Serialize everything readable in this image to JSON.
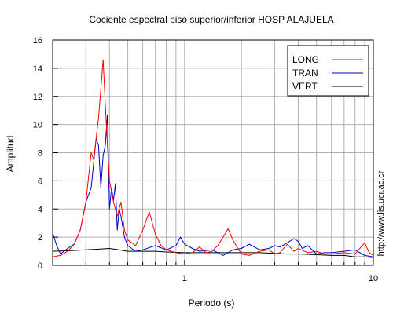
{
  "chart_data": {
    "type": "line",
    "title": "Cociente espectral piso superior/inferior  HOSP ALAJUELA",
    "xlabel": "Periodo (s)",
    "ylabel": "Amplitud",
    "x_scale": "log",
    "xlim": [
      0.2,
      10
    ],
    "ylim": [
      0,
      16
    ],
    "x_tick_labels": [
      {
        "value": 1,
        "label": "1"
      },
      {
        "value": 10,
        "label": "10"
      }
    ],
    "y_ticks": [
      0,
      2,
      4,
      6,
      8,
      10,
      12,
      14,
      16
    ],
    "grid": true,
    "legend_position": "top-right",
    "side_text": "http://www.lis.ucr.ac.cr",
    "series": [
      {
        "name": "LONG",
        "color": "#ff0000",
        "x": [
          0.2,
          0.22,
          0.24,
          0.26,
          0.28,
          0.3,
          0.32,
          0.33,
          0.34,
          0.35,
          0.36,
          0.37,
          0.38,
          0.39,
          0.4,
          0.42,
          0.44,
          0.46,
          0.48,
          0.5,
          0.55,
          0.6,
          0.65,
          0.7,
          0.75,
          0.8,
          0.9,
          1.0,
          1.1,
          1.2,
          1.3,
          1.4,
          1.5,
          1.6,
          1.7,
          1.8,
          2.0,
          2.2,
          2.5,
          2.8,
          3.0,
          3.2,
          3.5,
          3.8,
          4.0,
          4.5,
          5.0,
          5.5,
          6.0,
          7.0,
          8.0,
          9.0,
          9.5,
          10.0
        ],
        "y": [
          0.6,
          0.7,
          1.0,
          1.5,
          2.5,
          4.5,
          8.0,
          7.5,
          9.0,
          10.5,
          12.5,
          14.6,
          11.5,
          8.5,
          6.0,
          4.5,
          3.5,
          4.5,
          2.5,
          1.8,
          1.4,
          2.5,
          3.8,
          2.2,
          1.4,
          1.1,
          0.9,
          0.8,
          0.9,
          1.3,
          0.9,
          1.0,
          1.4,
          2.0,
          2.6,
          1.8,
          0.8,
          0.7,
          1.0,
          1.1,
          0.8,
          0.9,
          1.5,
          1.0,
          1.2,
          0.9,
          1.0,
          0.8,
          0.8,
          0.9,
          0.8,
          1.6,
          0.9,
          0.7
        ]
      },
      {
        "name": "TRAN",
        "color": "#0000cc",
        "x": [
          0.2,
          0.21,
          0.22,
          0.24,
          0.26,
          0.28,
          0.3,
          0.32,
          0.34,
          0.35,
          0.36,
          0.37,
          0.38,
          0.39,
          0.4,
          0.41,
          0.42,
          0.43,
          0.44,
          0.45,
          0.46,
          0.48,
          0.5,
          0.55,
          0.6,
          0.7,
          0.8,
          0.9,
          0.95,
          1.0,
          1.1,
          1.2,
          1.4,
          1.6,
          1.8,
          2.0,
          2.2,
          2.5,
          2.8,
          3.0,
          3.2,
          3.5,
          3.8,
          4.0,
          4.2,
          4.5,
          5.0,
          5.5,
          6.0,
          7.0,
          8.0,
          9.0,
          10.0
        ],
        "y": [
          2.3,
          1.4,
          0.8,
          1.2,
          1.5,
          2.5,
          4.5,
          5.5,
          9.0,
          8.5,
          5.5,
          7.8,
          8.5,
          10.7,
          4.0,
          5.5,
          4.6,
          5.8,
          2.5,
          4.0,
          3.5,
          2.0,
          1.4,
          1.0,
          1.1,
          1.4,
          1.1,
          1.4,
          2.0,
          1.5,
          1.2,
          1.0,
          1.1,
          0.7,
          1.1,
          1.2,
          1.5,
          1.1,
          1.2,
          1.4,
          1.3,
          1.6,
          1.9,
          1.7,
          1.2,
          1.4,
          0.8,
          0.9,
          0.9,
          1.0,
          1.1,
          0.7,
          0.6
        ]
      },
      {
        "name": "VERT",
        "color": "#000000",
        "x": [
          0.2,
          0.25,
          0.3,
          0.35,
          0.4,
          0.45,
          0.5,
          0.6,
          0.7,
          0.8,
          1.0,
          1.2,
          1.5,
          2.0,
          2.5,
          3.0,
          3.5,
          4.0,
          5.0,
          6.0,
          7.0,
          8.0,
          9.0,
          10.0
        ],
        "y": [
          1.0,
          1.05,
          1.1,
          1.15,
          1.2,
          1.1,
          1.0,
          1.0,
          1.0,
          0.95,
          0.9,
          0.9,
          0.9,
          0.9,
          0.9,
          0.85,
          0.8,
          0.8,
          0.75,
          0.7,
          0.7,
          0.6,
          0.6,
          0.55
        ]
      }
    ]
  }
}
